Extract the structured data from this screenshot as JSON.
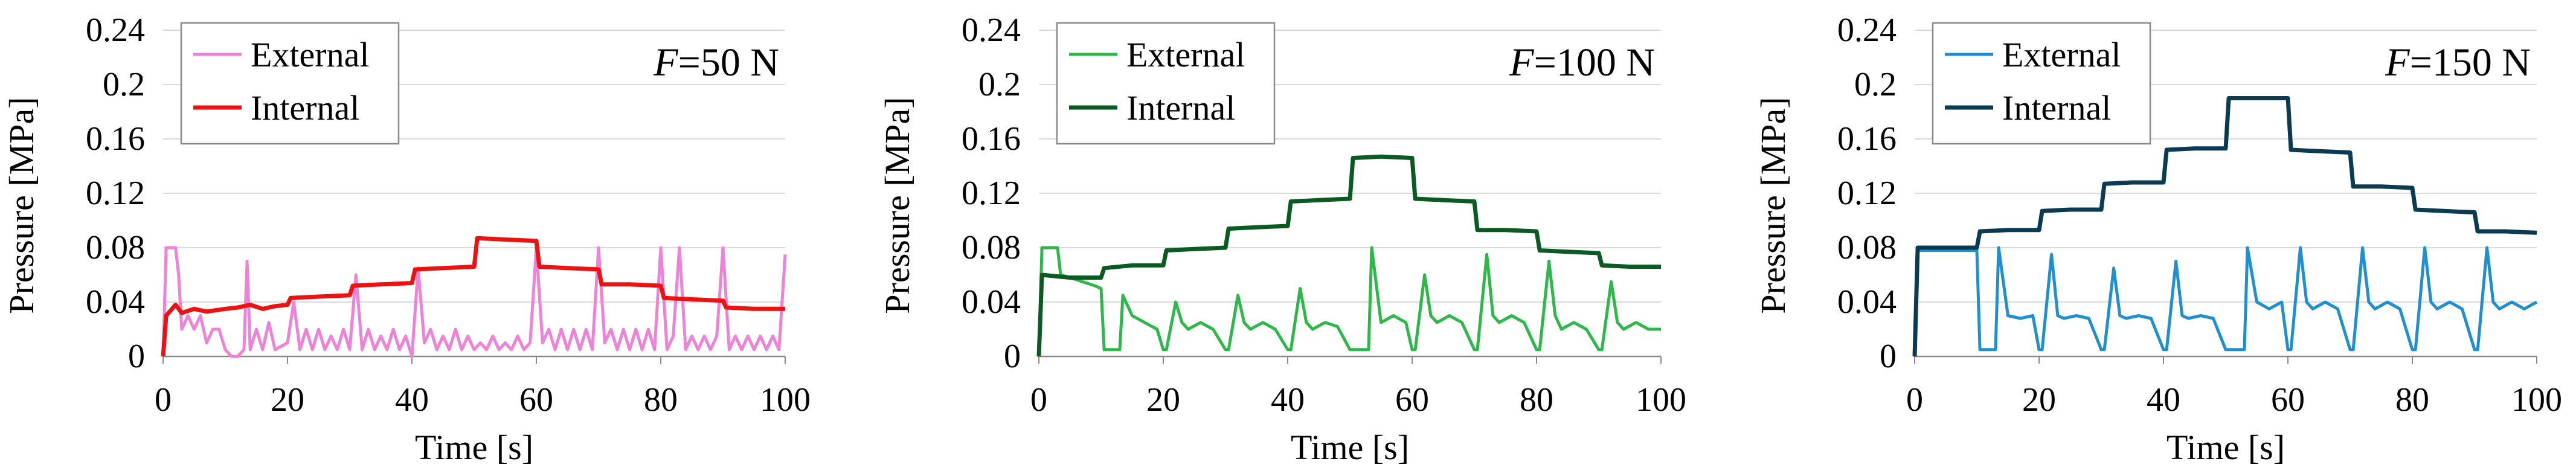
{
  "chart_data": [
    {
      "type": "line",
      "annotation": {
        "var": "F",
        "text": "=50 N"
      },
      "xlabel": "Time [s]",
      "ylabel": "Pressure [MPa]",
      "xlim": [
        0,
        100
      ],
      "ylim": [
        0,
        0.24
      ],
      "xticks": [
        "0",
        "20",
        "40",
        "60",
        "80",
        "100"
      ],
      "yticks": [
        "0",
        "0.04",
        "0.08",
        "0.12",
        "0.16",
        "0.2",
        "0.24"
      ],
      "grid": "horizontal",
      "legend_position": "top-left",
      "series": [
        {
          "name": "External",
          "color": "#ee82d6",
          "x": [
            0,
            0.5,
            1,
            2,
            2.5,
            3,
            4,
            5,
            6,
            7,
            8,
            9,
            10,
            11,
            12,
            13,
            13.5,
            14,
            15,
            16,
            17,
            18,
            20,
            21,
            22,
            23,
            24,
            25,
            26,
            27,
            28,
            29,
            30,
            31,
            32,
            33,
            34,
            35,
            36,
            37,
            38,
            39,
            40,
            41,
            42,
            43,
            44,
            45,
            46,
            47,
            48,
            49,
            50,
            51,
            52,
            53,
            54,
            55,
            56,
            57,
            58,
            59,
            60,
            61,
            62,
            63,
            64,
            65,
            66,
            67,
            68,
            69,
            70,
            71,
            72,
            73,
            74,
            75,
            76,
            77,
            78,
            79,
            80,
            81,
            82,
            83,
            84,
            85,
            86,
            87,
            88,
            89,
            90,
            91,
            92,
            93,
            94,
            95,
            96,
            97,
            98,
            99,
            100
          ],
          "y": [
            0,
            0.08,
            0.08,
            0.08,
            0.06,
            0.02,
            0.03,
            0.02,
            0.03,
            0.01,
            0.02,
            0.02,
            0.005,
            0,
            0,
            0.005,
            0.07,
            0.005,
            0.02,
            0.005,
            0.025,
            0.005,
            0.01,
            0.04,
            0.005,
            0.02,
            0.005,
            0.02,
            0.005,
            0.015,
            0.005,
            0.02,
            0.005,
            0.06,
            0.005,
            0.02,
            0.005,
            0.015,
            0.005,
            0.02,
            0.005,
            0.015,
            0,
            0.065,
            0.01,
            0.02,
            0.005,
            0.015,
            0.005,
            0.02,
            0.005,
            0.015,
            0.005,
            0.01,
            0.005,
            0.015,
            0.005,
            0.01,
            0.005,
            0.015,
            0.005,
            0.01,
            0.08,
            0.01,
            0.02,
            0.005,
            0.02,
            0.005,
            0.02,
            0.005,
            0.02,
            0.005,
            0.08,
            0.01,
            0.02,
            0.005,
            0.02,
            0.005,
            0.02,
            0.005,
            0.02,
            0.005,
            0.08,
            0.005,
            0.015,
            0.08,
            0.005,
            0.015,
            0.005,
            0.015,
            0.005,
            0.015,
            0.08,
            0.005,
            0.015,
            0.005,
            0.015,
            0.005,
            0.015,
            0.005,
            0.015,
            0.005,
            0.075
          ]
        },
        {
          "name": "Internal",
          "color": "#ee1111",
          "x": [
            0,
            0.5,
            2,
            3,
            5,
            7,
            10,
            12,
            14,
            16,
            18,
            20,
            20.5,
            25,
            30,
            30.5,
            35,
            40,
            40.5,
            45,
            50,
            50.5,
            55,
            60,
            60.5,
            65,
            70,
            70.5,
            75,
            80,
            80.5,
            85,
            90,
            90.5,
            95,
            100
          ],
          "y": [
            0,
            0.03,
            0.038,
            0.032,
            0.035,
            0.033,
            0.035,
            0.036,
            0.038,
            0.035,
            0.037,
            0.038,
            0.043,
            0.044,
            0.045,
            0.052,
            0.053,
            0.054,
            0.064,
            0.065,
            0.066,
            0.087,
            0.086,
            0.085,
            0.066,
            0.065,
            0.064,
            0.053,
            0.053,
            0.052,
            0.043,
            0.042,
            0.041,
            0.036,
            0.035,
            0.035
          ]
        }
      ]
    },
    {
      "type": "line",
      "annotation": {
        "var": "F",
        "text": "=100 N"
      },
      "xlabel": "Time [s]",
      "ylabel": "Pressure [MPa]",
      "xlim": [
        0,
        100
      ],
      "ylim": [
        0,
        0.24
      ],
      "xticks": [
        "0",
        "20",
        "40",
        "60",
        "80",
        "100"
      ],
      "yticks": [
        "0",
        "0.04",
        "0.08",
        "0.12",
        "0.16",
        "0.2",
        "0.24"
      ],
      "grid": "horizontal",
      "legend_position": "top-left",
      "series": [
        {
          "name": "External",
          "color": "#2eb84a",
          "x": [
            0,
            0.5,
            3,
            3.5,
            5,
            7,
            9,
            10,
            10.5,
            13,
            13.5,
            15,
            17,
            19,
            20,
            20.5,
            22,
            23,
            24,
            26,
            28,
            30,
            30.5,
            32,
            33,
            34,
            36,
            38,
            40,
            40.5,
            42,
            43,
            44,
            46,
            48,
            50,
            50.5,
            53,
            53.5,
            55,
            57,
            59,
            60,
            60.5,
            62,
            63,
            64,
            66,
            68,
            70,
            70.5,
            72,
            73,
            74,
            76,
            78,
            80,
            80.5,
            82,
            83,
            84,
            86,
            88,
            90,
            90.5,
            92,
            93,
            94,
            96,
            98,
            100
          ],
          "y": [
            0,
            0.08,
            0.08,
            0.06,
            0.058,
            0.055,
            0.052,
            0.05,
            0.005,
            0.005,
            0.045,
            0.03,
            0.025,
            0.02,
            0.005,
            0.005,
            0.04,
            0.025,
            0.02,
            0.025,
            0.02,
            0.005,
            0.005,
            0.045,
            0.025,
            0.02,
            0.025,
            0.02,
            0.005,
            0.005,
            0.05,
            0.025,
            0.02,
            0.025,
            0.022,
            0.005,
            0.005,
            0.005,
            0.08,
            0.025,
            0.03,
            0.025,
            0.005,
            0.005,
            0.06,
            0.03,
            0.025,
            0.03,
            0.025,
            0.005,
            0.005,
            0.075,
            0.03,
            0.025,
            0.03,
            0.025,
            0.005,
            0.005,
            0.07,
            0.03,
            0.02,
            0.025,
            0.02,
            0.005,
            0.005,
            0.055,
            0.025,
            0.02,
            0.025,
            0.02,
            0.02
          ]
        },
        {
          "name": "Internal",
          "color": "#0a5a22",
          "x": [
            0,
            0.5,
            5,
            10,
            10.5,
            15,
            20,
            20.5,
            25,
            30,
            30.5,
            35,
            40,
            40.5,
            45,
            50,
            50.5,
            55,
            60,
            60.5,
            65,
            70,
            70.5,
            75,
            80,
            80.5,
            85,
            90,
            90.5,
            95,
            100
          ],
          "y": [
            0,
            0.06,
            0.058,
            0.058,
            0.065,
            0.067,
            0.067,
            0.078,
            0.079,
            0.08,
            0.094,
            0.095,
            0.096,
            0.114,
            0.115,
            0.116,
            0.146,
            0.147,
            0.146,
            0.116,
            0.115,
            0.114,
            0.093,
            0.093,
            0.092,
            0.078,
            0.077,
            0.076,
            0.067,
            0.066,
            0.066
          ]
        }
      ]
    },
    {
      "type": "line",
      "annotation": {
        "var": "F",
        "text": "=150 N"
      },
      "xlabel": "Time [s]",
      "ylabel": "Pressure [MPa]",
      "xlim": [
        0,
        100
      ],
      "ylim": [
        0,
        0.24
      ],
      "xticks": [
        "0",
        "20",
        "40",
        "60",
        "80",
        "100"
      ],
      "yticks": [
        "0",
        "0.04",
        "0.08",
        "0.12",
        "0.16",
        "0.2",
        "0.24"
      ],
      "grid": "horizontal",
      "legend_position": "top-left",
      "series": [
        {
          "name": "External",
          "color": "#1f8fd0",
          "x": [
            0,
            0.5,
            10,
            10.5,
            13,
            13.5,
            15,
            17,
            19,
            20,
            20.5,
            22,
            23,
            24,
            26,
            28,
            30,
            30.5,
            32,
            33,
            34,
            36,
            38,
            40,
            40.5,
            42,
            43,
            44,
            46,
            48,
            50,
            50.5,
            53,
            53.5,
            55,
            57,
            59,
            60,
            60.5,
            62,
            63,
            64,
            66,
            68,
            70,
            70.5,
            72,
            73,
            74,
            76,
            78,
            80,
            80.5,
            82,
            83,
            84,
            86,
            88,
            90,
            90.5,
            92,
            93,
            94,
            96,
            98,
            100
          ],
          "y": [
            0,
            0.078,
            0.078,
            0.005,
            0.005,
            0.08,
            0.03,
            0.028,
            0.03,
            0.005,
            0.005,
            0.075,
            0.03,
            0.028,
            0.03,
            0.028,
            0.005,
            0.005,
            0.065,
            0.03,
            0.028,
            0.03,
            0.028,
            0.005,
            0.005,
            0.07,
            0.03,
            0.028,
            0.03,
            0.028,
            0.005,
            0.005,
            0.005,
            0.08,
            0.04,
            0.035,
            0.04,
            0.005,
            0.005,
            0.08,
            0.04,
            0.035,
            0.04,
            0.035,
            0.005,
            0.005,
            0.08,
            0.04,
            0.035,
            0.04,
            0.035,
            0.005,
            0.005,
            0.08,
            0.04,
            0.035,
            0.04,
            0.035,
            0.005,
            0.005,
            0.08,
            0.04,
            0.035,
            0.04,
            0.035,
            0.04
          ]
        },
        {
          "name": "Internal",
          "color": "#0b3b52",
          "x": [
            0,
            0.5,
            5,
            10,
            10.5,
            15,
            20,
            20.5,
            25,
            30,
            30.5,
            35,
            40,
            40.5,
            45,
            50,
            50.5,
            55,
            60,
            60.5,
            65,
            70,
            70.5,
            75,
            80,
            80.5,
            85,
            90,
            90.5,
            95,
            100
          ],
          "y": [
            0,
            0.08,
            0.08,
            0.08,
            0.092,
            0.093,
            0.093,
            0.107,
            0.108,
            0.108,
            0.127,
            0.128,
            0.128,
            0.152,
            0.153,
            0.153,
            0.19,
            0.19,
            0.19,
            0.152,
            0.151,
            0.15,
            0.125,
            0.125,
            0.124,
            0.108,
            0.107,
            0.106,
            0.092,
            0.092,
            0.091
          ]
        }
      ]
    }
  ]
}
